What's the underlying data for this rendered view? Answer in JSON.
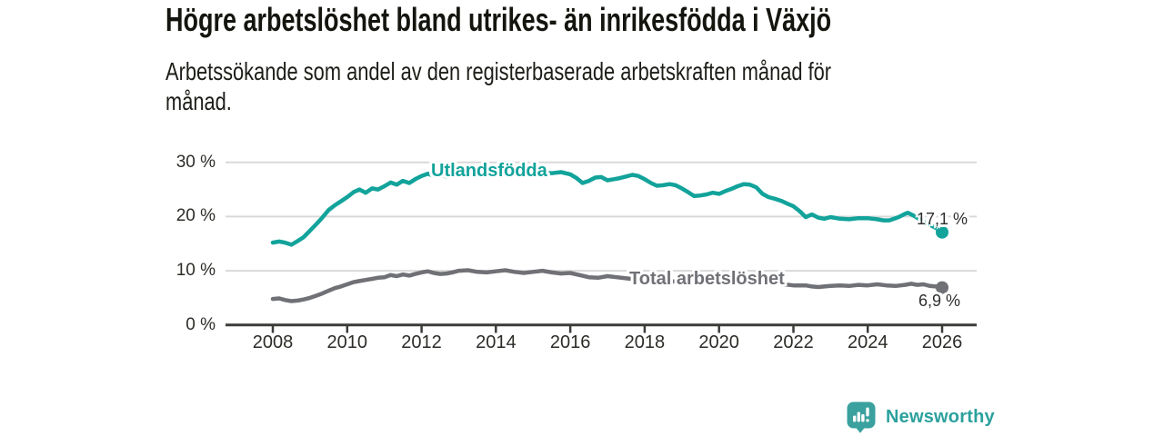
{
  "header": {
    "title": "Högre arbetslöshet bland utrikes- än inrikesfödda i Växjö",
    "subtitle": "Arbetssökande som andel av den registerbaserade arbetskraften månad för\nmånad."
  },
  "branding": {
    "name": "Newsworthy",
    "logo_icon": "bar-chart-speech-bubble-icon"
  },
  "colors": {
    "accent_teal": "#12a39b",
    "series_gray": "#707176",
    "grid_line": "#d9d9d9",
    "axis": "#3b3b38",
    "brand_teal": "#2ba19d",
    "text_dark": "#15150f"
  },
  "chart_data": {
    "type": "line",
    "title": "Högre arbetslöshet bland utrikes- än inrikesfödda i Växjö",
    "subtitle": "Arbetssökande som andel av den registerbaserade arbetskraften månad för månad.",
    "xlabel": "",
    "ylabel": "",
    "unit": "%",
    "grid": "horizontal",
    "legend": "inline-labels",
    "x_range": [
      2007.1,
      2026.9
    ],
    "y_range": [
      0,
      33
    ],
    "x_ticks": [
      {
        "value": 2008,
        "label": "2008"
      },
      {
        "value": 2010,
        "label": "2010"
      },
      {
        "value": 2012,
        "label": "2012"
      },
      {
        "value": 2014,
        "label": "2014"
      },
      {
        "value": 2016,
        "label": "2016"
      },
      {
        "value": 2018,
        "label": "2018"
      },
      {
        "value": 2020,
        "label": "2020"
      },
      {
        "value": 2022,
        "label": "2022"
      },
      {
        "value": 2024,
        "label": "2024"
      },
      {
        "value": 2026,
        "label": "2026"
      }
    ],
    "y_ticks": [
      {
        "value": 0,
        "label": "0 %"
      },
      {
        "value": 10,
        "label": "10 %"
      },
      {
        "value": 20,
        "label": "20 %"
      },
      {
        "value": 30,
        "label": "30 %"
      }
    ],
    "series": [
      {
        "name": "Utlandsfödda",
        "color": "#12a39b",
        "end_label": "17,1 %",
        "end_value": 17.1,
        "points": [
          [
            2008.0,
            15.2
          ],
          [
            2008.17,
            15.4
          ],
          [
            2008.33,
            15.2
          ],
          [
            2008.5,
            14.8
          ],
          [
            2008.67,
            15.5
          ],
          [
            2008.83,
            16.2
          ],
          [
            2009.0,
            17.4
          ],
          [
            2009.17,
            18.6
          ],
          [
            2009.33,
            19.8
          ],
          [
            2009.5,
            21.2
          ],
          [
            2009.67,
            22.1
          ],
          [
            2009.83,
            22.8
          ],
          [
            2010.0,
            23.6
          ],
          [
            2010.17,
            24.5
          ],
          [
            2010.33,
            25.0
          ],
          [
            2010.5,
            24.4
          ],
          [
            2010.67,
            25.2
          ],
          [
            2010.83,
            25.0
          ],
          [
            2011.0,
            25.6
          ],
          [
            2011.17,
            26.3
          ],
          [
            2011.33,
            25.9
          ],
          [
            2011.5,
            26.6
          ],
          [
            2011.67,
            26.2
          ],
          [
            2011.83,
            26.9
          ],
          [
            2012.0,
            27.5
          ],
          [
            2012.17,
            27.9
          ],
          [
            2012.33,
            27.5
          ],
          [
            2012.5,
            27.7
          ],
          [
            2012.67,
            27.4
          ],
          [
            2012.83,
            27.8
          ],
          [
            2013.0,
            28.0
          ],
          [
            2013.25,
            28.2
          ],
          [
            2013.5,
            27.9
          ],
          [
            2013.75,
            28.1
          ],
          [
            2014.0,
            28.2
          ],
          [
            2014.25,
            28.0
          ],
          [
            2014.5,
            27.9
          ],
          [
            2014.75,
            28.1
          ],
          [
            2015.0,
            28.3
          ],
          [
            2015.25,
            28.2
          ],
          [
            2015.5,
            28.0
          ],
          [
            2015.75,
            28.2
          ],
          [
            2016.0,
            27.8
          ],
          [
            2016.17,
            27.1
          ],
          [
            2016.33,
            26.2
          ],
          [
            2016.5,
            26.6
          ],
          [
            2016.67,
            27.2
          ],
          [
            2016.83,
            27.3
          ],
          [
            2017.0,
            26.7
          ],
          [
            2017.17,
            26.9
          ],
          [
            2017.33,
            27.1
          ],
          [
            2017.5,
            27.4
          ],
          [
            2017.67,
            27.7
          ],
          [
            2017.83,
            27.5
          ],
          [
            2018.0,
            26.9
          ],
          [
            2018.17,
            26.2
          ],
          [
            2018.33,
            25.7
          ],
          [
            2018.5,
            25.8
          ],
          [
            2018.67,
            26.0
          ],
          [
            2018.83,
            25.8
          ],
          [
            2019.0,
            25.2
          ],
          [
            2019.17,
            24.5
          ],
          [
            2019.33,
            23.8
          ],
          [
            2019.5,
            23.9
          ],
          [
            2019.67,
            24.1
          ],
          [
            2019.83,
            24.4
          ],
          [
            2020.0,
            24.2
          ],
          [
            2020.17,
            24.7
          ],
          [
            2020.33,
            25.1
          ],
          [
            2020.5,
            25.6
          ],
          [
            2020.67,
            26.0
          ],
          [
            2020.83,
            25.9
          ],
          [
            2021.0,
            25.4
          ],
          [
            2021.17,
            24.2
          ],
          [
            2021.33,
            23.6
          ],
          [
            2021.5,
            23.3
          ],
          [
            2021.67,
            22.9
          ],
          [
            2021.83,
            22.4
          ],
          [
            2022.0,
            21.9
          ],
          [
            2022.17,
            21.0
          ],
          [
            2022.33,
            19.9
          ],
          [
            2022.5,
            20.4
          ],
          [
            2022.67,
            19.8
          ],
          [
            2022.83,
            19.6
          ],
          [
            2023.0,
            19.9
          ],
          [
            2023.25,
            19.6
          ],
          [
            2023.5,
            19.5
          ],
          [
            2023.75,
            19.7
          ],
          [
            2024.0,
            19.7
          ],
          [
            2024.25,
            19.5
          ],
          [
            2024.42,
            19.3
          ],
          [
            2024.58,
            19.3
          ],
          [
            2024.83,
            19.9
          ],
          [
            2025.0,
            20.5
          ],
          [
            2025.08,
            20.7
          ],
          [
            2025.25,
            20.1
          ],
          [
            2025.42,
            19.4
          ],
          [
            2025.58,
            18.8
          ],
          [
            2025.75,
            18.2
          ],
          [
            2025.92,
            17.6
          ],
          [
            2026.0,
            17.1
          ]
        ]
      },
      {
        "name": "Total arbetslöshet",
        "color": "#707176",
        "end_label": "6,9 %",
        "end_value": 6.9,
        "points": [
          [
            2008.0,
            4.8
          ],
          [
            2008.17,
            4.9
          ],
          [
            2008.33,
            4.6
          ],
          [
            2008.5,
            4.4
          ],
          [
            2008.67,
            4.5
          ],
          [
            2008.83,
            4.7
          ],
          [
            2009.0,
            5.0
          ],
          [
            2009.17,
            5.4
          ],
          [
            2009.33,
            5.8
          ],
          [
            2009.5,
            6.3
          ],
          [
            2009.67,
            6.8
          ],
          [
            2009.83,
            7.1
          ],
          [
            2010.0,
            7.5
          ],
          [
            2010.17,
            7.9
          ],
          [
            2010.33,
            8.1
          ],
          [
            2010.5,
            8.3
          ],
          [
            2010.67,
            8.5
          ],
          [
            2010.83,
            8.7
          ],
          [
            2011.0,
            8.8
          ],
          [
            2011.17,
            9.2
          ],
          [
            2011.33,
            9.0
          ],
          [
            2011.5,
            9.3
          ],
          [
            2011.67,
            9.1
          ],
          [
            2011.83,
            9.4
          ],
          [
            2012.0,
            9.7
          ],
          [
            2012.17,
            9.9
          ],
          [
            2012.33,
            9.6
          ],
          [
            2012.5,
            9.4
          ],
          [
            2012.67,
            9.5
          ],
          [
            2012.83,
            9.7
          ],
          [
            2013.0,
            10.0
          ],
          [
            2013.25,
            10.1
          ],
          [
            2013.5,
            9.8
          ],
          [
            2013.75,
            9.7
          ],
          [
            2014.0,
            9.9
          ],
          [
            2014.25,
            10.1
          ],
          [
            2014.5,
            9.8
          ],
          [
            2014.75,
            9.6
          ],
          [
            2015.0,
            9.8
          ],
          [
            2015.25,
            10.0
          ],
          [
            2015.5,
            9.7
          ],
          [
            2015.75,
            9.5
          ],
          [
            2016.0,
            9.6
          ],
          [
            2016.25,
            9.2
          ],
          [
            2016.5,
            8.8
          ],
          [
            2016.75,
            8.7
          ],
          [
            2017.0,
            9.0
          ],
          [
            2017.25,
            8.8
          ],
          [
            2017.5,
            8.6
          ],
          [
            2017.75,
            8.4
          ],
          [
            2018.0,
            8.3
          ],
          [
            2018.5,
            8.1
          ],
          [
            2019.0,
            8.0
          ],
          [
            2019.5,
            7.9
          ],
          [
            2020.0,
            8.0
          ],
          [
            2020.5,
            8.2
          ],
          [
            2021.0,
            8.0
          ],
          [
            2021.5,
            7.7
          ],
          [
            2022.0,
            7.3
          ],
          [
            2022.33,
            7.3
          ],
          [
            2022.5,
            7.1
          ],
          [
            2022.67,
            7.0
          ],
          [
            2022.83,
            7.1
          ],
          [
            2023.0,
            7.2
          ],
          [
            2023.25,
            7.3
          ],
          [
            2023.5,
            7.2
          ],
          [
            2023.75,
            7.4
          ],
          [
            2024.0,
            7.3
          ],
          [
            2024.25,
            7.5
          ],
          [
            2024.5,
            7.3
          ],
          [
            2024.75,
            7.2
          ],
          [
            2025.0,
            7.4
          ],
          [
            2025.17,
            7.6
          ],
          [
            2025.33,
            7.4
          ],
          [
            2025.5,
            7.5
          ],
          [
            2025.67,
            7.2
          ],
          [
            2025.83,
            7.1
          ],
          [
            2026.0,
            6.9
          ]
        ]
      }
    ]
  }
}
